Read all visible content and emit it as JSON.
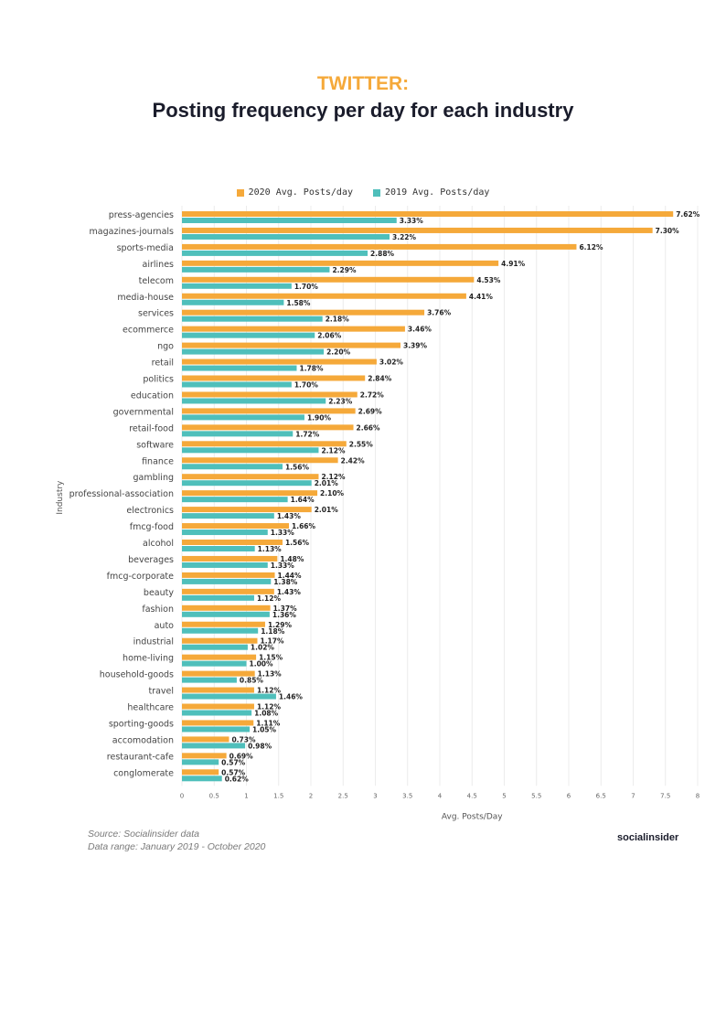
{
  "header": {
    "title_line1": "TWITTER:",
    "title_line2": "Posting frequency per day for each industry"
  },
  "colors": {
    "series_2020": "#f5a93a",
    "series_2019": "#4fbfbb",
    "title_accent": "#f5a93a",
    "title_dark": "#1a1c2b"
  },
  "footer": {
    "source": "Source: Socialinsider data",
    "range": "Data range: January 2019 - October 2020",
    "logo": "socialinsider"
  },
  "chart_data": {
    "type": "bar",
    "orientation": "horizontal",
    "xlabel": "Avg. Posts/Day",
    "ylabel": "Industry",
    "xlim": [
      0,
      8
    ],
    "xticks": [
      0,
      0.5,
      1,
      1.5,
      2,
      2.5,
      3,
      3.5,
      4,
      4.5,
      5,
      5.5,
      6,
      6.5,
      7,
      7.5,
      8
    ],
    "xtick_labels": [
      "0",
      "0.5",
      "1",
      "1.5",
      "2",
      "2.5",
      "3",
      "3.5",
      "4",
      "4.5",
      "5",
      "5.5",
      "6",
      "6.5",
      "7",
      "7.5",
      "8"
    ],
    "grid": "vertical",
    "legend_position": "top",
    "categories": [
      "press-agencies",
      "magazines-journals",
      "sports-media",
      "airlines",
      "telecom",
      "media-house",
      "services",
      "ecommerce",
      "ngo",
      "retail",
      "politics",
      "education",
      "governmental",
      "retail-food",
      "software",
      "finance",
      "gambling",
      "professional-association",
      "electronics",
      "fmcg-food",
      "alcohol",
      "beverages",
      "fmcg-corporate",
      "beauty",
      "fashion",
      "auto",
      "industrial",
      "home-living",
      "household-goods",
      "travel",
      "healthcare",
      "sporting-goods",
      "accomodation",
      "restaurant-cafe",
      "conglomerate"
    ],
    "series": [
      {
        "name": "2020 Avg. Posts/day",
        "values": [
          7.62,
          7.3,
          6.12,
          4.91,
          4.53,
          4.41,
          3.76,
          3.46,
          3.39,
          3.02,
          2.84,
          2.72,
          2.69,
          2.66,
          2.55,
          2.42,
          2.12,
          2.1,
          2.01,
          1.66,
          1.56,
          1.48,
          1.44,
          1.43,
          1.37,
          1.29,
          1.17,
          1.15,
          1.13,
          1.12,
          1.12,
          1.11,
          0.73,
          0.69,
          0.57
        ],
        "labels": [
          "7.62%",
          "7.30%",
          "6.12%",
          "4.91%",
          "4.53%",
          "4.41%",
          "3.76%",
          "3.46%",
          "3.39%",
          "3.02%",
          "2.84%",
          "2.72%",
          "2.69%",
          "2.66%",
          "2.55%",
          "2.42%",
          "2.12%",
          "2.10%",
          "2.01%",
          "1.66%",
          "1.56%",
          "1.48%",
          "1.44%",
          "1.43%",
          "1.37%",
          "1.29%",
          "1.17%",
          "1.15%",
          "1.13%",
          "1.12%",
          "1.12%",
          "1.11%",
          "0.73%",
          "0.69%",
          "0.57%"
        ]
      },
      {
        "name": "2019 Avg. Posts/day",
        "values": [
          3.33,
          3.22,
          2.88,
          2.29,
          1.7,
          1.58,
          2.18,
          2.06,
          2.2,
          1.78,
          1.7,
          2.23,
          1.9,
          1.72,
          2.12,
          1.56,
          2.01,
          1.64,
          1.43,
          1.33,
          1.13,
          1.33,
          1.38,
          1.12,
          1.36,
          1.18,
          1.02,
          1.0,
          0.85,
          1.46,
          1.08,
          1.05,
          0.98,
          0.57,
          0.62
        ],
        "labels": [
          "3.33%",
          "3.22%",
          "2.88%",
          "2.29%",
          "1.70%",
          "1.58%",
          "2.18%",
          "2.06%",
          "2.20%",
          "1.78%",
          "1.70%",
          "2.23%",
          "1.90%",
          "1.72%",
          "2.12%",
          "1.56%",
          "2.01%",
          "1.64%",
          "1.43%",
          "1.33%",
          "1.13%",
          "1.33%",
          "1.38%",
          "1.12%",
          "1.36%",
          "1.18%",
          "1.02%",
          "1.00%",
          "0.85%",
          "1.46%",
          "1.08%",
          "1.05%",
          "0.98%",
          "0.57%",
          "0.62%"
        ]
      }
    ]
  }
}
